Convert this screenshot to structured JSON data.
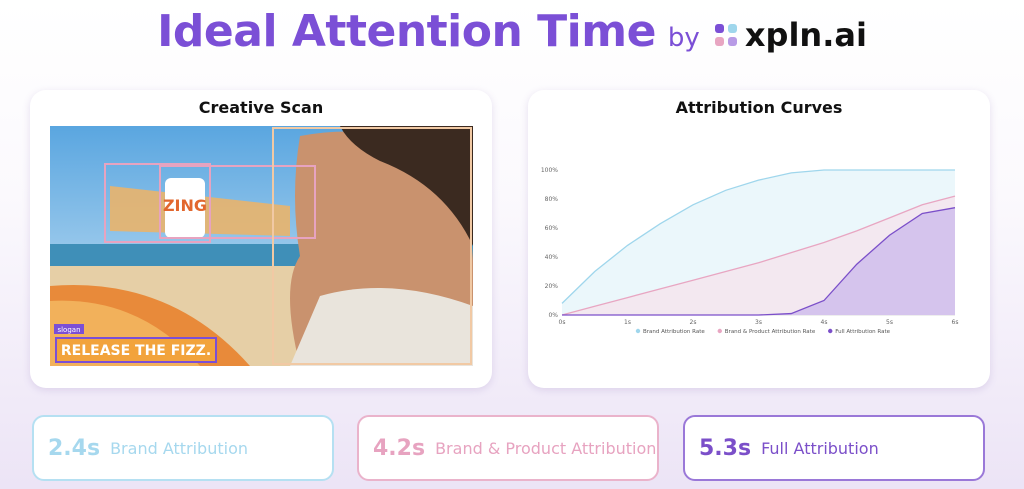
{
  "header": {
    "title": "Ideal Attention Time",
    "by": "by",
    "brand": "xpln.ai"
  },
  "creative_scan": {
    "title": "Creative Scan",
    "bottle_text": "ZING",
    "slogan_tag": "slogan",
    "slogan": "RELEASE THE FIZZ."
  },
  "chart_data": {
    "type": "line",
    "title": "Attribution Curves",
    "x": [
      0,
      0.5,
      1,
      1.5,
      2,
      2.5,
      3,
      3.5,
      4,
      4.5,
      5,
      5.5,
      6
    ],
    "xlim": [
      0,
      6
    ],
    "xticks": [
      {
        "value": 0,
        "label": "0s"
      },
      {
        "value": 1,
        "label": "1s"
      },
      {
        "value": 2,
        "label": "2s"
      },
      {
        "value": 3,
        "label": "3s"
      },
      {
        "value": 4,
        "label": "4s"
      },
      {
        "value": 5,
        "label": "5s"
      },
      {
        "value": 6,
        "label": "6s"
      }
    ],
    "ylim": [
      0,
      100
    ],
    "yticks": [
      {
        "value": 0,
        "label": "0%"
      },
      {
        "value": 20,
        "label": "20%"
      },
      {
        "value": 40,
        "label": "40%"
      },
      {
        "value": 60,
        "label": "60%"
      },
      {
        "value": 80,
        "label": "80%"
      },
      {
        "value": 100,
        "label": "100%"
      }
    ],
    "legend": "bottom",
    "series": [
      {
        "name": "Brand Attribution Rate",
        "color": "#9fd6ec",
        "fill": "#e4f4fa",
        "values": [
          8,
          30,
          48,
          63,
          76,
          86,
          93,
          98,
          100,
          100,
          100,
          100,
          100
        ]
      },
      {
        "name": "Brand & Product Attribution Rate",
        "color": "#e8a6c2",
        "fill": "#f5e3ec",
        "values": [
          0,
          6,
          12,
          18,
          24,
          30,
          36,
          43,
          50,
          58,
          67,
          76,
          82
        ]
      },
      {
        "name": "Full Attribution Rate",
        "color": "#7b4fc9",
        "fill": "#cbb8ec",
        "values": [
          0,
          0,
          0,
          0,
          0,
          0,
          0,
          1,
          10,
          35,
          55,
          70,
          74
        ]
      }
    ]
  },
  "cards": [
    {
      "value": "2.4s",
      "label": "Brand Attribution",
      "color": "#a6d8ee",
      "border": "#b5e0f2"
    },
    {
      "value": "4.2s",
      "label": "Brand & Product Attribution",
      "color": "#e7a3c0",
      "border": "#eab3cb"
    },
    {
      "value": "5.3s",
      "label": "Full Attribution",
      "color": "#7b4fc9",
      "border": "#9a78d8"
    }
  ]
}
